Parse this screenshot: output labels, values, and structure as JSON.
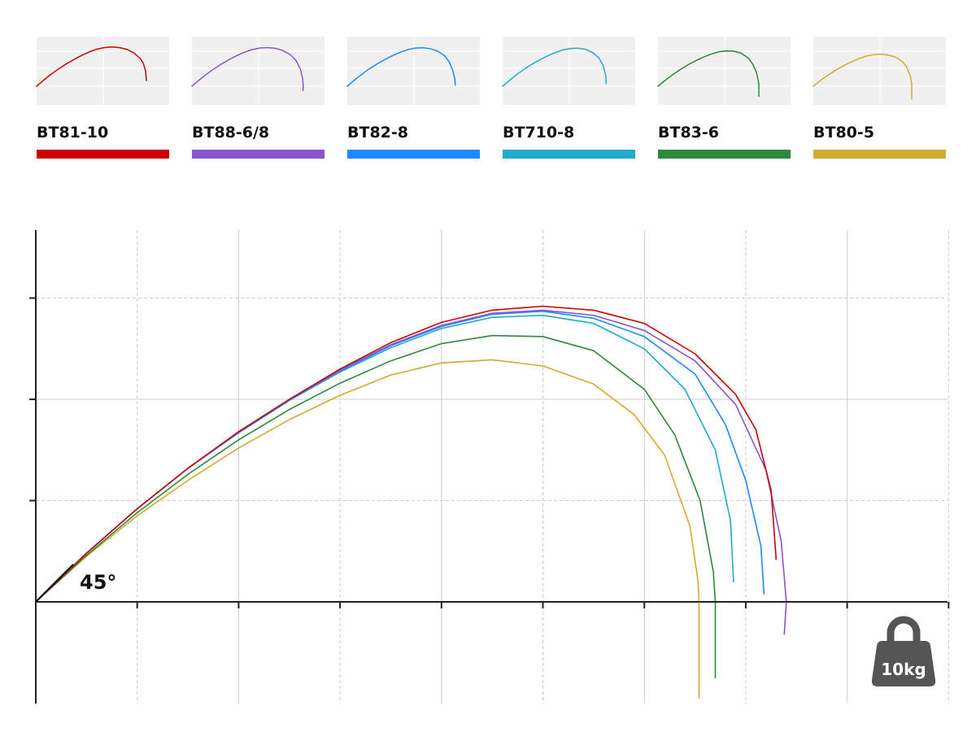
{
  "chart_data": {
    "type": "line",
    "title": "",
    "xlabel": "",
    "ylabel": "",
    "xlim": [
      0,
      9
    ],
    "ylim": [
      -1,
      3.7
    ],
    "grid": true,
    "legend_position": "top",
    "annotations": {
      "launch_angle": "45°",
      "weight": "10kg"
    },
    "series": [
      {
        "name": "BT81-10",
        "color": "#cc0000",
        "x": [
          0,
          0.5,
          1,
          1.5,
          2,
          2.5,
          3,
          3.5,
          4,
          4.5,
          5,
          5.5,
          6,
          6.5,
          6.9,
          7.1,
          7.25,
          7.3
        ],
        "y": [
          0,
          0.48,
          0.92,
          1.32,
          1.68,
          2.0,
          2.3,
          2.56,
          2.76,
          2.88,
          2.92,
          2.88,
          2.75,
          2.45,
          2.05,
          1.7,
          1.1,
          0.42
        ]
      },
      {
        "name": "BT88-6/8",
        "color": "#8855cc",
        "x": [
          0,
          0.5,
          1,
          1.5,
          2,
          2.5,
          3,
          3.5,
          4,
          4.5,
          5,
          5.5,
          6,
          6.5,
          6.9,
          7.2,
          7.35,
          7.4,
          7.38
        ],
        "y": [
          0,
          0.48,
          0.92,
          1.32,
          1.68,
          2.0,
          2.29,
          2.54,
          2.73,
          2.85,
          2.88,
          2.83,
          2.68,
          2.38,
          1.95,
          1.3,
          0.6,
          0.0,
          -0.32
        ]
      },
      {
        "name": "BT82-8",
        "color": "#1e88ff",
        "x": [
          0,
          0.5,
          1,
          1.5,
          2,
          2.5,
          3,
          3.5,
          4,
          4.5,
          5,
          5.5,
          6,
          6.5,
          6.8,
          7.0,
          7.15,
          7.18
        ],
        "y": [
          0,
          0.48,
          0.92,
          1.32,
          1.67,
          1.99,
          2.28,
          2.53,
          2.72,
          2.84,
          2.87,
          2.8,
          2.62,
          2.25,
          1.75,
          1.2,
          0.55,
          0.08
        ]
      },
      {
        "name": "BT710-8",
        "color": "#22aacc",
        "x": [
          0,
          0.5,
          1,
          1.5,
          2,
          2.5,
          3,
          3.5,
          4,
          4.5,
          5,
          5.5,
          6,
          6.4,
          6.7,
          6.85,
          6.88
        ],
        "y": [
          0,
          0.48,
          0.92,
          1.32,
          1.67,
          1.99,
          2.27,
          2.51,
          2.7,
          2.81,
          2.83,
          2.75,
          2.5,
          2.1,
          1.5,
          0.8,
          0.2
        ]
      },
      {
        "name": "BT83-6",
        "color": "#2a8a3a",
        "x": [
          0,
          0.5,
          1,
          1.5,
          2,
          2.5,
          3,
          3.5,
          4,
          4.5,
          5,
          5.5,
          6,
          6.3,
          6.55,
          6.68,
          6.7,
          6.7
        ],
        "y": [
          0,
          0.46,
          0.88,
          1.26,
          1.6,
          1.9,
          2.16,
          2.38,
          2.55,
          2.63,
          2.62,
          2.48,
          2.1,
          1.65,
          1.0,
          0.3,
          0.0,
          -0.75
        ]
      },
      {
        "name": "BT80-5",
        "color": "#d0ac30",
        "x": [
          0,
          0.5,
          1,
          1.5,
          2,
          2.5,
          3,
          3.5,
          4,
          4.5,
          5,
          5.5,
          5.9,
          6.2,
          6.45,
          6.53,
          6.54,
          6.54
        ],
        "y": [
          0,
          0.45,
          0.85,
          1.2,
          1.52,
          1.8,
          2.04,
          2.24,
          2.36,
          2.39,
          2.33,
          2.15,
          1.85,
          1.45,
          0.75,
          0.2,
          0.0,
          -0.95
        ]
      }
    ]
  }
}
